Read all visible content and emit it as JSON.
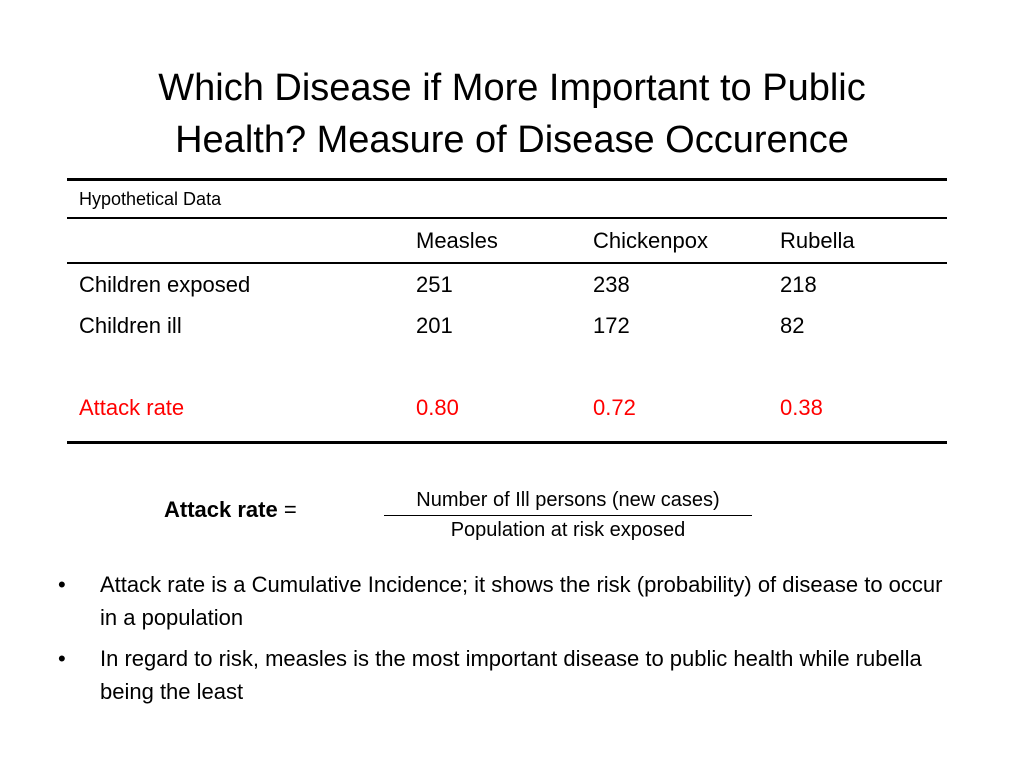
{
  "slide": {
    "title_lines": [
      "Which Disease if More Important to Public",
      "Health? Measure of Disease Occurence"
    ]
  },
  "table": {
    "caption": "Hypothetical Data",
    "columns": [
      "Measles",
      "Chickenpox",
      "Rubella"
    ],
    "rows": [
      {
        "label": "Children exposed",
        "values": [
          "251",
          "238",
          "218"
        ]
      },
      {
        "label": "Children ill",
        "values": [
          "201",
          "172",
          "82"
        ]
      },
      {
        "label": "Attack rate",
        "values": [
          "0.80",
          "0.72",
          "0.38"
        ]
      }
    ]
  },
  "formula": {
    "label": "Attack rate",
    "equals": " =",
    "numerator": "Number of Ill persons (new cases)",
    "denominator": "Population at risk exposed"
  },
  "bullets": [
    {
      "marker": "•",
      "text": "Attack rate is a Cumulative Incidence; it shows the risk (probability) of disease to occur in a population"
    },
    {
      "marker": "•",
      "text": "In regard to risk, measles is the  most important disease to public health while rubella being the least"
    }
  ],
  "colors": {
    "highlight": "#ff0000",
    "text": "#000000",
    "background": "#ffffff"
  }
}
